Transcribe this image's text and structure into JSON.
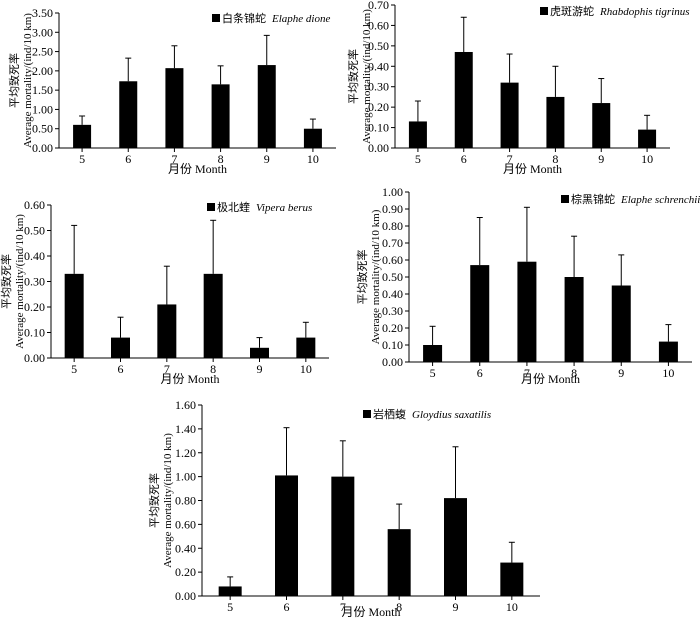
{
  "chart_data": [
    {
      "type": "bar",
      "legend": {
        "cn": "白条锦蛇",
        "species": "Elaphe dione"
      },
      "categories": [
        "5",
        "6",
        "7",
        "8",
        "9",
        "10"
      ],
      "values": [
        0.6,
        1.73,
        2.07,
        1.65,
        2.15,
        0.5
      ],
      "errors": [
        0.23,
        0.6,
        0.58,
        0.48,
        0.77,
        0.25
      ],
      "ylim": [
        0,
        3.5
      ],
      "yticks": [
        "0.00",
        "0.50",
        "1.00",
        "1.50",
        "2.00",
        "2.50",
        "3.00",
        "3.50"
      ],
      "ylabel_cn": "平均致死率",
      "ylabel": "Average mortality/(ind/10 km)",
      "xlabel": "月份 Month"
    },
    {
      "type": "bar",
      "legend": {
        "cn": "虎斑游蛇",
        "species": "Rhabdophis tigrinus"
      },
      "categories": [
        "5",
        "6",
        "7",
        "8",
        "9",
        "10"
      ],
      "values": [
        0.13,
        0.47,
        0.32,
        0.25,
        0.22,
        0.09
      ],
      "errors": [
        0.1,
        0.17,
        0.14,
        0.15,
        0.12,
        0.07
      ],
      "ylim": [
        0,
        0.7
      ],
      "yticks": [
        "0.00",
        "0.10",
        "0.20",
        "0.30",
        "0.40",
        "0.50",
        "0.60",
        "0.70"
      ],
      "ylabel_cn": "平均致死率",
      "ylabel": "Average mortality/(ind/10 km)",
      "xlabel": "月份 Month"
    },
    {
      "type": "bar",
      "legend": {
        "cn": "极北蝰",
        "species": "Vipera berus"
      },
      "categories": [
        "5",
        "6",
        "7",
        "8",
        "9",
        "10"
      ],
      "values": [
        0.33,
        0.08,
        0.21,
        0.33,
        0.04,
        0.08
      ],
      "errors": [
        0.19,
        0.08,
        0.15,
        0.21,
        0.04,
        0.06
      ],
      "ylim": [
        0,
        0.6
      ],
      "yticks": [
        "0.00",
        "0.10",
        "0.20",
        "0.30",
        "0.40",
        "0.50",
        "0.60"
      ],
      "ylabel_cn": "平均致死率",
      "ylabel": "Average mortality/(ind/10 km)",
      "xlabel": "月份 Month"
    },
    {
      "type": "bar",
      "legend": {
        "cn": "棕黑锦蛇",
        "species": "Elaphe schrenchii"
      },
      "categories": [
        "5",
        "6",
        "7",
        "8",
        "9",
        "10"
      ],
      "values": [
        0.1,
        0.57,
        0.59,
        0.5,
        0.45,
        0.12
      ],
      "errors": [
        0.11,
        0.28,
        0.32,
        0.24,
        0.18,
        0.1
      ],
      "ylim": [
        0,
        1.0
      ],
      "yticks": [
        "0.00",
        "0.10",
        "0.20",
        "0.30",
        "0.40",
        "0.50",
        "0.60",
        "0.70",
        "0.80",
        "0.90",
        "1.00"
      ],
      "ylabel_cn": "平均致死率",
      "ylabel": "Average mortality/(ind/10 km)",
      "xlabel": "月份 Month"
    },
    {
      "type": "bar",
      "legend": {
        "cn": "岩栖蝮",
        "species": "Gloydius saxatilis"
      },
      "categories": [
        "5",
        "6",
        "7",
        "8",
        "9",
        "10"
      ],
      "values": [
        0.08,
        1.01,
        1.0,
        0.56,
        0.82,
        0.28
      ],
      "errors": [
        0.08,
        0.4,
        0.3,
        0.21,
        0.43,
        0.17
      ],
      "ylim": [
        0,
        1.6
      ],
      "yticks": [
        "0.00",
        "0.20",
        "0.40",
        "0.60",
        "0.80",
        "1.00",
        "1.20",
        "1.40",
        "1.60"
      ],
      "ylabel_cn": "平均致死率",
      "ylabel": "Average mortality/(ind/10 km)",
      "xlabel": "月份 Month"
    }
  ]
}
